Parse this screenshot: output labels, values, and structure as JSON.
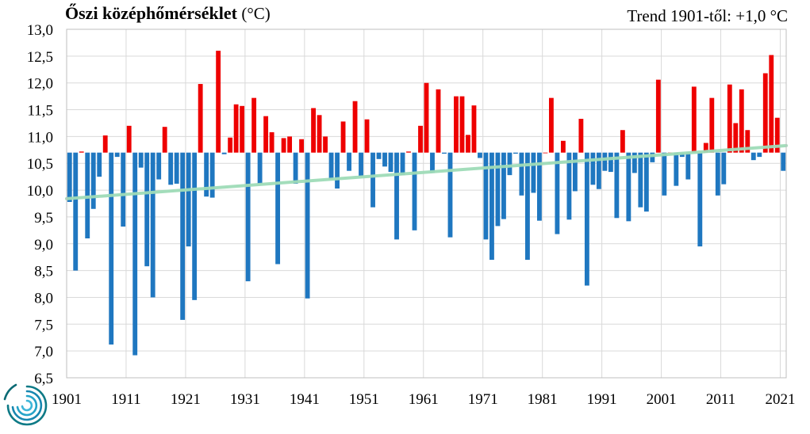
{
  "title": {
    "bold": "Őszi középhőmérséklet",
    "unit": "(°C)"
  },
  "trend_text": "Trend 1901-től: +1,0 °C",
  "colors": {
    "above": "#ee0000",
    "below": "#1f77c0",
    "trend": "#9fdcb8",
    "grid": "#d9d9d9",
    "axis": "#bfbfbf"
  },
  "chart_data": {
    "type": "bar",
    "title": "Őszi középhőmérséklet",
    "unit": "°C",
    "xlabel": "",
    "ylabel": "",
    "baseline": 10.7,
    "ylim": [
      6.5,
      13.0
    ],
    "yticks": [
      "6,5",
      "7,0",
      "7,5",
      "8,0",
      "8,5",
      "9,0",
      "9,5",
      "10,0",
      "10,5",
      "11,0",
      "11,5",
      "12,0",
      "12,5",
      "13,0"
    ],
    "xticks": [
      "1901",
      "1911",
      "1921",
      "1931",
      "1941",
      "1951",
      "1961",
      "1971",
      "1981",
      "1991",
      "2001",
      "2011",
      "2021"
    ],
    "grid": true,
    "x": [
      1901,
      1902,
      1903,
      1904,
      1905,
      1906,
      1907,
      1908,
      1909,
      1910,
      1911,
      1912,
      1913,
      1914,
      1915,
      1916,
      1917,
      1918,
      1919,
      1920,
      1921,
      1922,
      1923,
      1924,
      1925,
      1926,
      1927,
      1928,
      1929,
      1930,
      1931,
      1932,
      1933,
      1934,
      1935,
      1936,
      1937,
      1938,
      1939,
      1940,
      1941,
      1942,
      1943,
      1944,
      1945,
      1946,
      1947,
      1948,
      1949,
      1950,
      1951,
      1952,
      1953,
      1954,
      1955,
      1956,
      1957,
      1958,
      1959,
      1960,
      1961,
      1962,
      1963,
      1964,
      1965,
      1966,
      1967,
      1968,
      1969,
      1970,
      1971,
      1972,
      1973,
      1974,
      1975,
      1976,
      1977,
      1978,
      1979,
      1980,
      1981,
      1982,
      1983,
      1984,
      1985,
      1986,
      1987,
      1988,
      1989,
      1990,
      1991,
      1992,
      1993,
      1994,
      1995,
      1996,
      1997,
      1998,
      1999,
      2000,
      2001,
      2002,
      2003,
      2004,
      2005,
      2006,
      2007,
      2008,
      2009,
      2010,
      2011,
      2012,
      2013,
      2014,
      2015,
      2016,
      2017,
      2018,
      2019,
      2020,
      2021
    ],
    "values": [
      9.78,
      8.5,
      10.72,
      9.1,
      9.65,
      10.25,
      11.02,
      7.12,
      10.62,
      9.32,
      11.2,
      6.92,
      10.42,
      8.58,
      8.0,
      10.2,
      11.18,
      10.1,
      10.12,
      7.58,
      8.95,
      7.95,
      11.98,
      9.88,
      9.86,
      12.6,
      10.67,
      10.98,
      11.6,
      11.57,
      8.3,
      11.72,
      10.12,
      11.38,
      11.08,
      8.62,
      10.97,
      11.0,
      10.12,
      10.95,
      7.98,
      11.53,
      11.4,
      11.0,
      10.2,
      10.03,
      11.28,
      10.36,
      11.66,
      10.26,
      11.32,
      9.68,
      10.58,
      10.44,
      10.34,
      9.08,
      10.28,
      10.72,
      9.25,
      11.2,
      12.0,
      10.32,
      11.88,
      10.68,
      9.12,
      11.75,
      11.75,
      11.03,
      11.58,
      10.6,
      9.08,
      8.7,
      9.33,
      9.46,
      10.28,
      10.68,
      9.9,
      8.7,
      9.95,
      9.43,
      10.7,
      11.72,
      9.18,
      10.92,
      9.45,
      9.98,
      11.33,
      8.22,
      10.1,
      10.02,
      10.36,
      10.34,
      9.48,
      11.12,
      9.42,
      10.32,
      9.68,
      9.6,
      10.52,
      12.06,
      9.9,
      10.7,
      10.08,
      10.62,
      10.2,
      11.93,
      8.95,
      10.88,
      11.72,
      9.9,
      10.11,
      11.97,
      11.25,
      11.88,
      11.12,
      10.56,
      10.62,
      12.18,
      12.52,
      11.35,
      10.36
    ],
    "trend": {
      "start_year": 1901,
      "start_value": 9.84,
      "end_year": 2021,
      "end_value": 10.83
    }
  }
}
